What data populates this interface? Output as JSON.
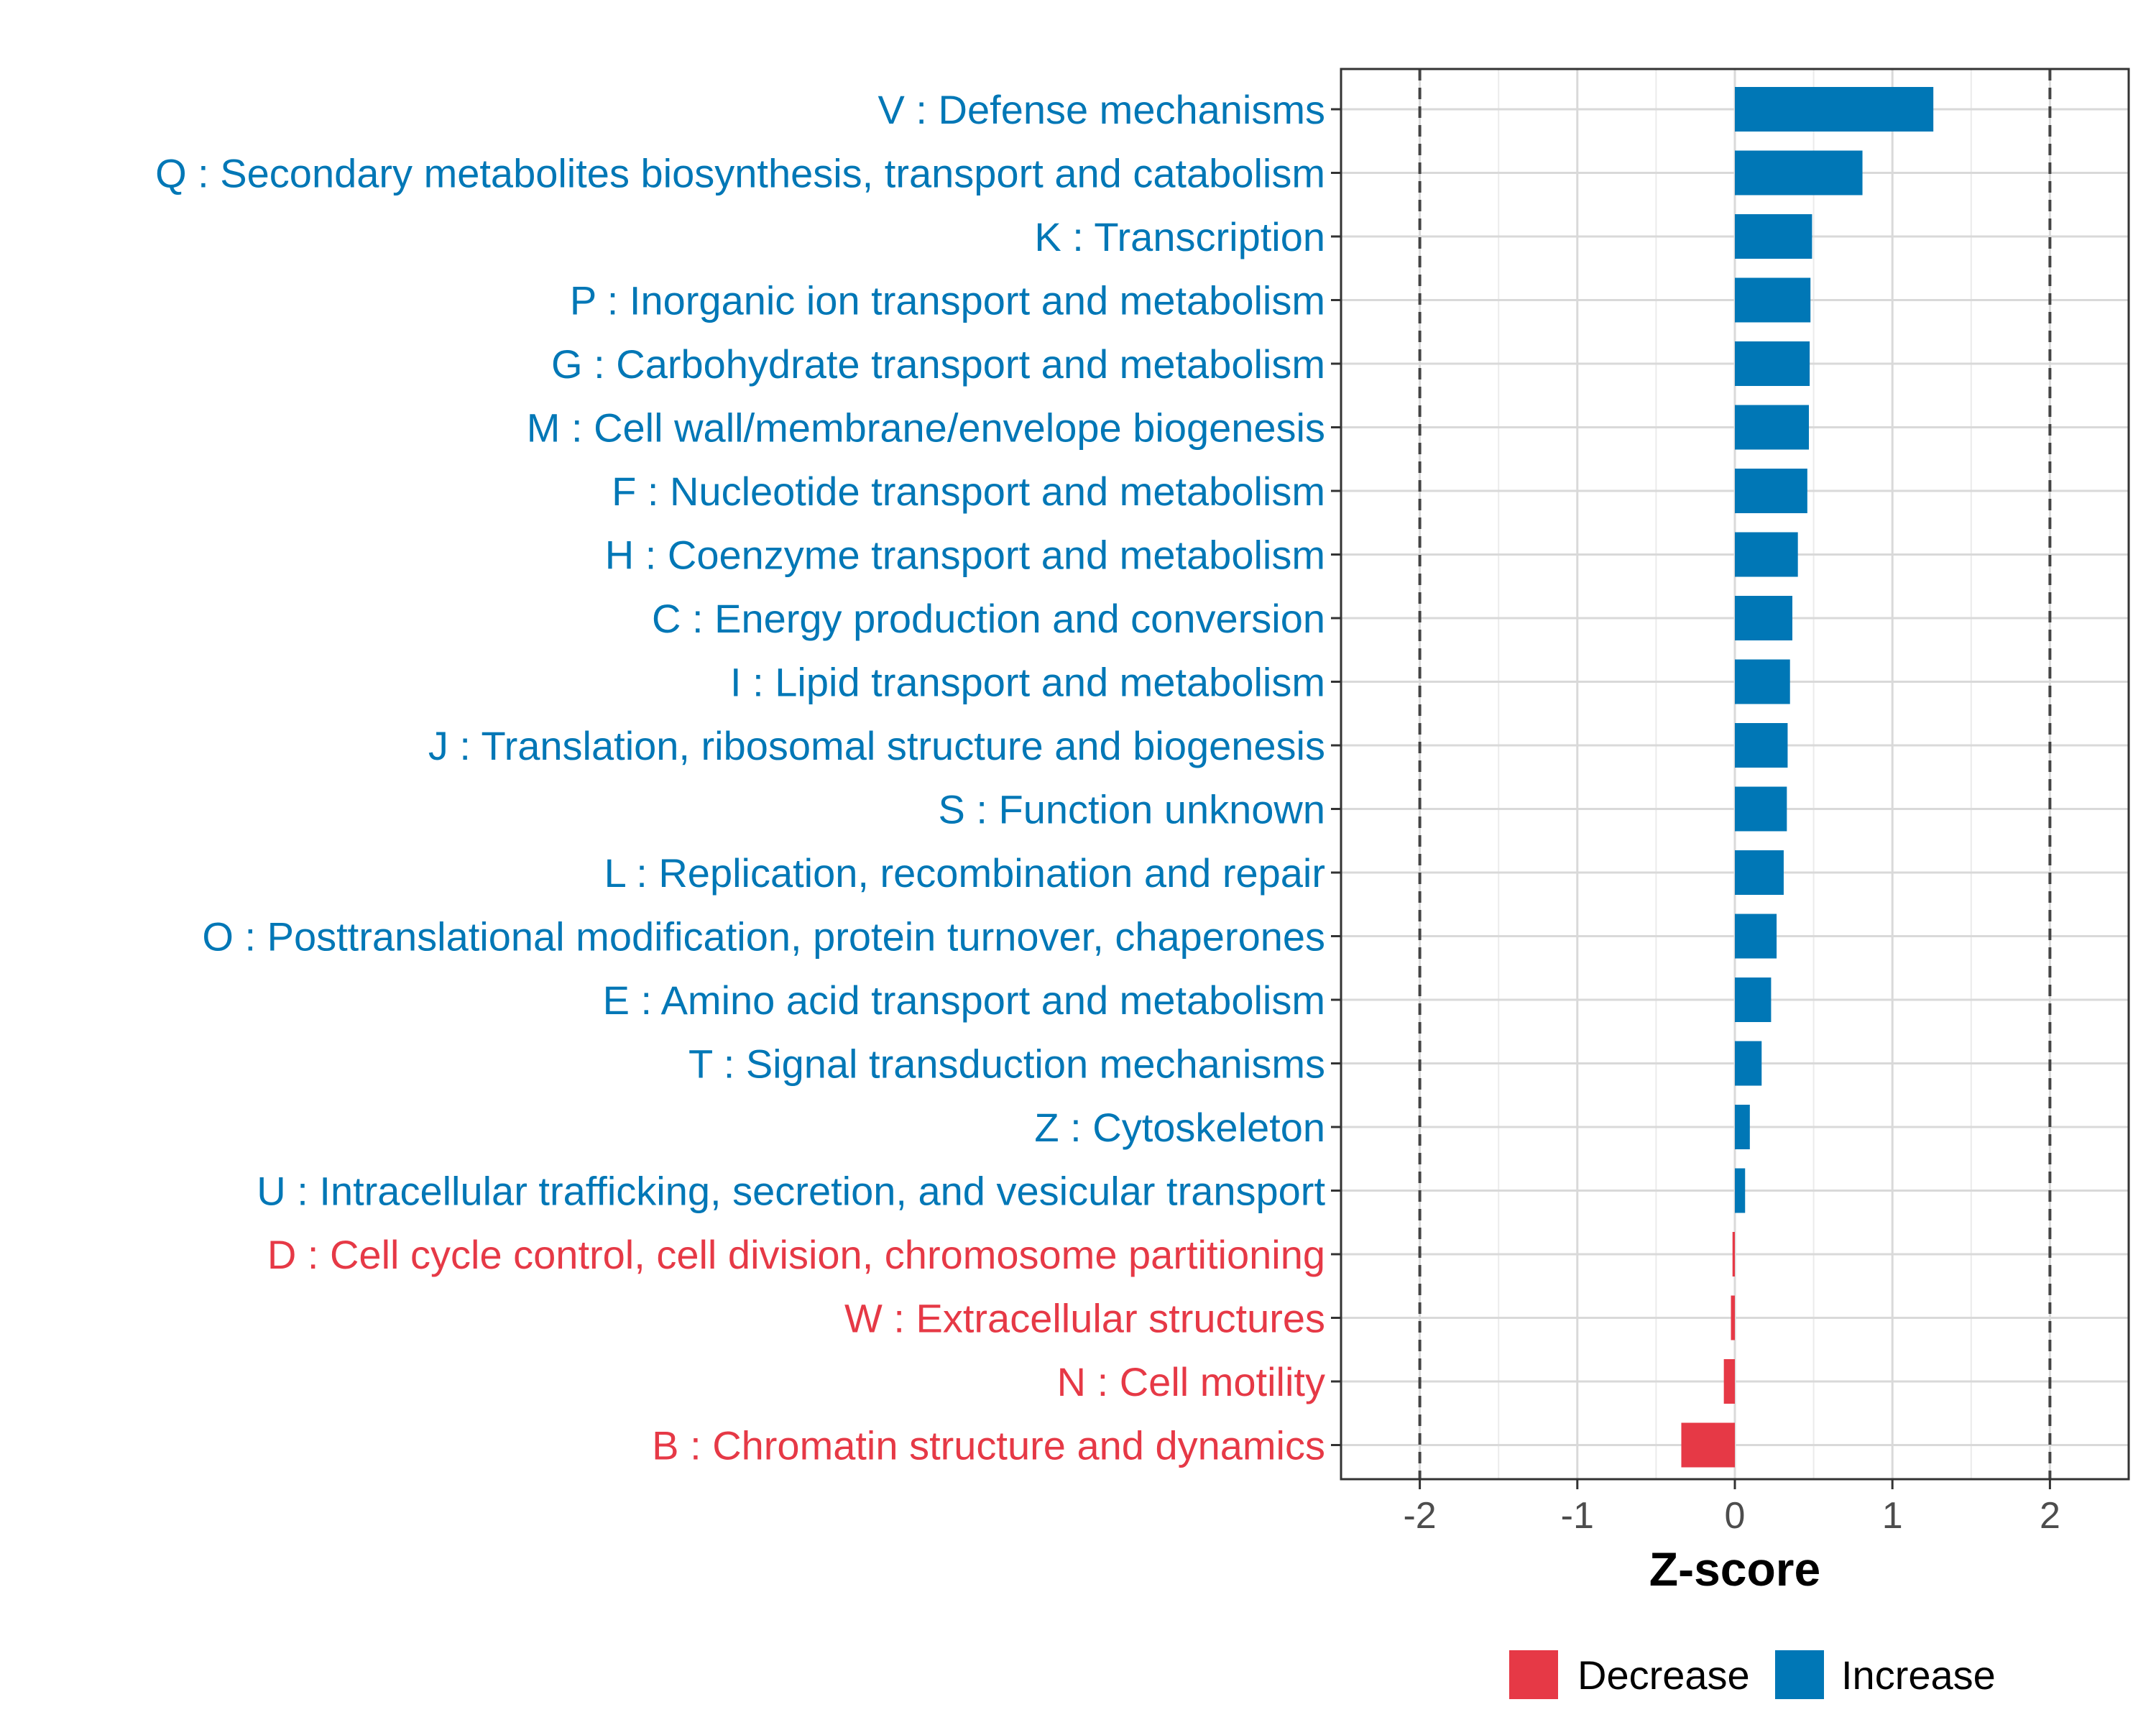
{
  "chart_data": {
    "type": "bar",
    "orientation": "horizontal",
    "categories": [
      "V : Defense mechanisms",
      "Q : Secondary metabolites biosynthesis, transport and catabolism",
      "K : Transcription",
      "P : Inorganic ion transport and metabolism",
      "G : Carbohydrate transport and metabolism",
      "M : Cell wall/membrane/envelope biogenesis",
      "F : Nucleotide transport and metabolism",
      "H : Coenzyme transport and metabolism",
      "C : Energy production and conversion",
      "I : Lipid transport and metabolism",
      "J : Translation, ribosomal structure and biogenesis",
      "S : Function unknown",
      "L : Replication, recombination and repair",
      "O : Posttranslational modification, protein turnover, chaperones",
      "E : Amino acid transport and metabolism",
      "T : Signal transduction mechanisms",
      "Z : Cytoskeleton",
      "U : Intracellular trafficking, secretion, and vesicular transport",
      "D : Cell cycle control, cell division, chromosome partitioning",
      "W : Extracellular structures",
      "N : Cell motility",
      "B : Chromatin structure and dynamics"
    ],
    "values": [
      1.26,
      0.81,
      0.49,
      0.48,
      0.475,
      0.47,
      0.46,
      0.4,
      0.365,
      0.35,
      0.335,
      0.33,
      0.31,
      0.265,
      0.23,
      0.17,
      0.095,
      0.065,
      -0.015,
      -0.025,
      -0.07,
      -0.34
    ],
    "groups": [
      "Increase",
      "Increase",
      "Increase",
      "Increase",
      "Increase",
      "Increase",
      "Increase",
      "Increase",
      "Increase",
      "Increase",
      "Increase",
      "Increase",
      "Increase",
      "Increase",
      "Increase",
      "Increase",
      "Increase",
      "Increase",
      "Decrease",
      "Decrease",
      "Decrease",
      "Decrease"
    ],
    "xlabel": "Z-score",
    "ylabel": "",
    "xlim": [
      -2.5,
      2.5
    ],
    "xticks": [
      -2,
      -1,
      0,
      1,
      2
    ],
    "xtick_labels": [
      "-2",
      "-1",
      "0",
      "1",
      "2"
    ],
    "reference_lines": [
      -2,
      2
    ],
    "grid": true,
    "legend": {
      "position": "bottom",
      "entries": [
        {
          "label": "Decrease",
          "color": "#e63946"
        },
        {
          "label": "Increase",
          "color": "#0077b6"
        }
      ]
    },
    "colors": {
      "Increase": "#0077b6",
      "Decrease": "#e63946"
    }
  }
}
